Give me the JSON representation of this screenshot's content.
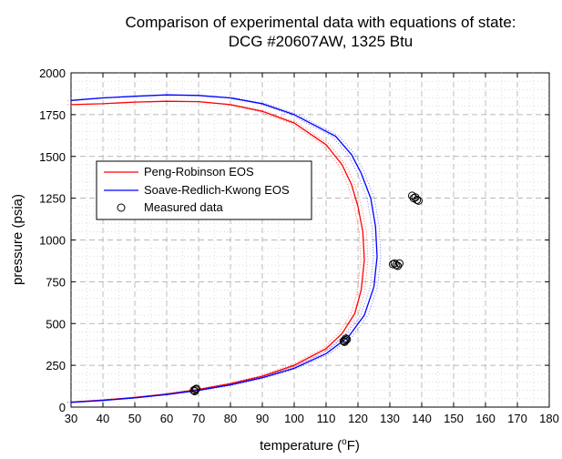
{
  "chart_data": {
    "type": "line",
    "title": "Comparison of experimental data with equations of state:",
    "subtitle": "DCG #20607AW, 1325 Btu",
    "xlabel_prefix": "temperature (",
    "xlabel_sup": "o",
    "xlabel_suffix": "F)",
    "ylabel": "pressure (psia)",
    "xlim": [
      30,
      180
    ],
    "ylim": [
      0,
      2000
    ],
    "xticks": [
      30,
      40,
      50,
      60,
      70,
      80,
      90,
      100,
      110,
      120,
      130,
      140,
      150,
      160,
      170,
      180
    ],
    "yticks": [
      0,
      250,
      500,
      750,
      1000,
      1250,
      1500,
      1750,
      2000
    ],
    "grid": true,
    "legend_position": "upper-left",
    "series": [
      {
        "name": "Peng-Robinson EOS",
        "color": "#ff0000",
        "style": "line",
        "x": [
          30,
          40,
          50,
          60,
          70,
          80,
          90,
          100,
          110,
          115,
          119,
          121,
          122,
          121.5,
          120,
          118,
          115,
          110,
          100,
          90,
          80,
          70,
          60,
          50,
          40,
          30
        ],
        "y": [
          30,
          42,
          58,
          78,
          105,
          140,
          185,
          250,
          350,
          440,
          560,
          700,
          880,
          1050,
          1200,
          1330,
          1450,
          1570,
          1700,
          1770,
          1810,
          1828,
          1830,
          1825,
          1815,
          1810
        ]
      },
      {
        "name": "Soave-Redlich-Kwong EOS",
        "color": "#0000ff",
        "style": "line",
        "x": [
          30,
          40,
          50,
          60,
          70,
          80,
          90,
          100,
          110,
          117,
          122,
          125,
          126,
          125.5,
          124,
          121,
          118,
          113,
          100,
          90,
          80,
          70,
          60,
          50,
          40,
          30
        ],
        "y": [
          28,
          40,
          55,
          75,
          100,
          133,
          176,
          232,
          320,
          420,
          550,
          720,
          900,
          1080,
          1250,
          1400,
          1510,
          1620,
          1750,
          1815,
          1850,
          1865,
          1868,
          1860,
          1850,
          1835
        ]
      },
      {
        "name": "Measured data",
        "color": "#000000",
        "style": "markers",
        "x": [
          68.5,
          69,
          69.3,
          68.8,
          115.5,
          116,
          116.5,
          115.8,
          116.2,
          131,
          131.5,
          132,
          133,
          132.5,
          137,
          137.5,
          138,
          138.5,
          139
        ],
        "y": [
          100,
          105,
          110,
          95,
          395,
          400,
          405,
          390,
          410,
          855,
          860,
          850,
          860,
          845,
          1265,
          1250,
          1255,
          1240,
          1235
        ]
      }
    ]
  }
}
